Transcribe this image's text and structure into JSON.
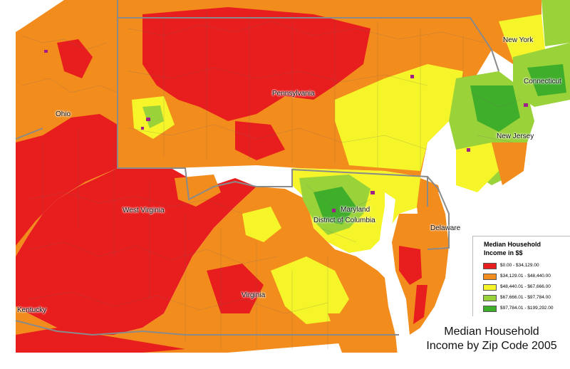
{
  "map": {
    "title_line1": "Median Household",
    "title_line2": "Income by Zip Code 2005",
    "legend": {
      "title_line1": "Median Household",
      "title_line2": "Income in $$",
      "items": [
        {
          "label": "$0.00 - $34,129.00",
          "color": "#e81d1d"
        },
        {
          "label": "$34,129.01 - $48,440.00",
          "color": "#f28c1d"
        },
        {
          "label": "$48,440.01 - $67,666.00",
          "color": "#f5f52a"
        },
        {
          "label": "$67,666.01 - $97,784.00",
          "color": "#9ad23a"
        },
        {
          "label": "$97,784.01 - $199,292.00",
          "color": "#3fae2a"
        }
      ]
    },
    "state_labels": {
      "new_york": "New York",
      "connecticut": "Connecticut",
      "pennsylvania": "Pennsylvania",
      "ohio": "Ohio",
      "new_jersey": "New Jersey",
      "maryland": "Maryland",
      "dc": "District of Columbia",
      "delaware": "Delaware",
      "west_virginia": "West Virginia",
      "virginia": "Virginia",
      "kentucky": "Kentucky"
    },
    "colors": {
      "water": "#ffffff",
      "state_border": "#8a8a8a",
      "zip_border": "#6b6b6b"
    }
  }
}
